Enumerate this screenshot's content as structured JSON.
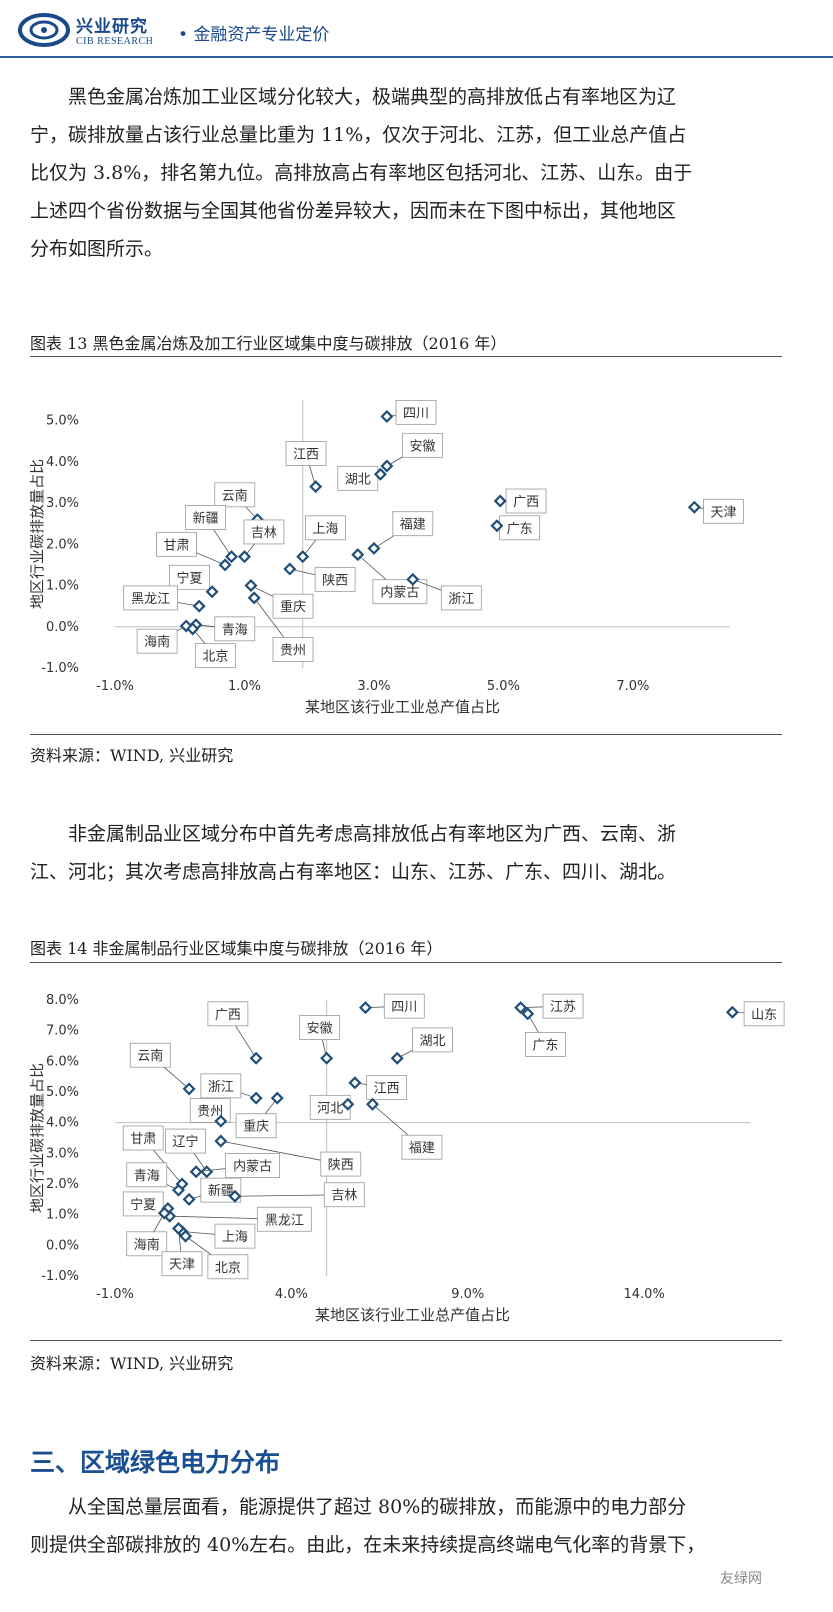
{
  "header": {
    "logo_cn": "兴业研究",
    "logo_en": "CIB RESEARCH",
    "tagline": "金融资产专业定价"
  },
  "para1": [
    "黑色金属冶炼加工业区域分化较大，极端典型的高排放低占有率地区为辽",
    "宁，碳排放量占该行业总量比重为 11%，仅次于河北、江苏，但工业总产值占",
    "比仅为 3.8%，排名第九位。高排放高占有率地区包括河北、江苏、山东。由于",
    "上述四个省份数据与全国其他省份差异较大，因而未在下图中标出，其他地区",
    "分布如图所示。"
  ],
  "chart13_caption": "图表 13  黑色金属冶炼及加工行业区域集中度与碳排放（2016 年）",
  "source1": "资料来源：WIND, 兴业研究",
  "para2": [
    "非金属制品业区域分布中首先考虑高排放低占有率地区为广西、云南、浙",
    "江、河北；其次考虑高排放高占有率地区：山东、江苏、广东、四川、湖北。"
  ],
  "chart14_caption": "图表 14  非金属制品行业区域集中度与碳排放（2016 年）",
  "source2": "资料来源：WIND, 兴业研究",
  "section_title": "三、区域绿色电力分布",
  "para3": [
    "从全国总量层面看，能源提供了超过 80%的碳排放，而能源中的电力部分",
    "则提供全部碳排放的 40%左右。由此，在未来持续提高终端电气化率的背景下，"
  ],
  "watermark": "友绿网",
  "colors": {
    "brand": "#1a4a8a",
    "point": "#1f4e79",
    "section": "#1b4f93"
  },
  "chart_data": [
    {
      "type": "scatter",
      "xlabel": "某地区该行业工业总产值占比",
      "ylabel": "地区行业碳排放量占比",
      "xlim": [
        -1.0,
        8.5
      ],
      "ylim": [
        -1.0,
        5.5
      ],
      "x_ticks": [
        "-1.0%",
        "1.0%",
        "3.0%",
        "5.0%",
        "7.0%"
      ],
      "y_ticks": [
        "-1.0%",
        "0.0%",
        "1.0%",
        "2.0%",
        "3.0%",
        "4.0%",
        "5.0%"
      ],
      "x_tick_values": [
        -1,
        1,
        3,
        5,
        7
      ],
      "y_tick_values": [
        -1,
        0,
        1,
        2,
        3,
        4,
        5
      ],
      "ref_x": 1.9,
      "ref_y": 0.0,
      "points": [
        {
          "name": "四川",
          "x": 3.2,
          "y": 5.1,
          "lx": 3.65,
          "ly": 5.2
        },
        {
          "name": "江西",
          "x": 2.1,
          "y": 3.4,
          "lx": 1.95,
          "ly": 4.2
        },
        {
          "name": "安徽",
          "x": 3.2,
          "y": 3.9,
          "lx": 3.75,
          "ly": 4.4
        },
        {
          "name": "湖北",
          "x": 3.1,
          "y": 3.7,
          "lx": 2.75,
          "ly": 3.6
        },
        {
          "name": "云南",
          "x": 1.2,
          "y": 2.6,
          "lx": 0.85,
          "ly": 3.2
        },
        {
          "name": "新疆",
          "x": 0.8,
          "y": 1.7,
          "lx": 0.4,
          "ly": 2.65
        },
        {
          "name": "吉林",
          "x": 1.0,
          "y": 1.7,
          "lx": 1.3,
          "ly": 2.3
        },
        {
          "name": "上海",
          "x": 1.9,
          "y": 1.7,
          "lx": 2.25,
          "ly": 2.4
        },
        {
          "name": "福建",
          "x": 3.0,
          "y": 1.9,
          "lx": 3.6,
          "ly": 2.5
        },
        {
          "name": "广西",
          "x": 4.95,
          "y": 3.05,
          "lx": 5.35,
          "ly": 3.05
        },
        {
          "name": "广东",
          "x": 4.9,
          "y": 2.45,
          "lx": 5.25,
          "ly": 2.4
        },
        {
          "name": "天津",
          "x": 7.95,
          "y": 2.9,
          "lx": 8.4,
          "ly": 2.8
        },
        {
          "name": "甘肃",
          "x": 0.7,
          "y": 1.5,
          "lx": -0.05,
          "ly": 2.0
        },
        {
          "name": "宁夏",
          "x": 0.5,
          "y": 0.85,
          "lx": 0.15,
          "ly": 1.2
        },
        {
          "name": "黑龙江",
          "x": 0.3,
          "y": 0.5,
          "lx": -0.45,
          "ly": 0.7
        },
        {
          "name": "内蒙古",
          "x": 2.75,
          "y": 1.75,
          "lx": 3.4,
          "ly": 0.85
        },
        {
          "name": "陕西",
          "x": 1.7,
          "y": 1.4,
          "lx": 2.4,
          "ly": 1.15
        },
        {
          "name": "浙江",
          "x": 3.6,
          "y": 1.15,
          "lx": 4.35,
          "ly": 0.7
        },
        {
          "name": "重庆",
          "x": 1.1,
          "y": 1.0,
          "lx": 1.75,
          "ly": 0.5
        },
        {
          "name": "贵州",
          "x": 1.15,
          "y": 0.7,
          "lx": 1.75,
          "ly": -0.55
        },
        {
          "name": "青海",
          "x": 0.25,
          "y": 0.05,
          "lx": 0.85,
          "ly": -0.05
        },
        {
          "name": "海南",
          "x": 0.1,
          "y": 0.02,
          "lx": -0.35,
          "ly": -0.35
        },
        {
          "name": "北京",
          "x": 0.2,
          "y": -0.05,
          "lx": 0.55,
          "ly": -0.7
        }
      ]
    },
    {
      "type": "scatter",
      "xlabel": "某地区该行业工业总产值占比",
      "ylabel": "地区行业碳排放量占比",
      "xlim": [
        -1.0,
        17.0
      ],
      "ylim": [
        -1.0,
        8.0
      ],
      "x_ticks": [
        "-1.0%",
        "4.0%",
        "9.0%",
        "14.0%"
      ],
      "y_ticks": [
        "-1.0%",
        "0.0%",
        "1.0%",
        "2.0%",
        "3.0%",
        "4.0%",
        "5.0%",
        "6.0%",
        "7.0%",
        "8.0%"
      ],
      "x_tick_values": [
        -1,
        4,
        9,
        14
      ],
      "y_tick_values": [
        -1,
        0,
        1,
        2,
        3,
        4,
        5,
        6,
        7,
        8
      ],
      "ref_x": 5.0,
      "ref_y": 4.0,
      "points": [
        {
          "name": "四川",
          "x": 6.1,
          "y": 7.75,
          "lx": 7.2,
          "ly": 7.8
        },
        {
          "name": "江苏",
          "x": 10.5,
          "y": 7.75,
          "lx": 11.7,
          "ly": 7.8
        },
        {
          "name": "广东",
          "x": 10.7,
          "y": 7.55,
          "lx": 11.2,
          "ly": 6.55
        },
        {
          "name": "山东",
          "x": 16.5,
          "y": 7.6,
          "lx": 17.4,
          "ly": 7.55
        },
        {
          "name": "广西",
          "x": 3.0,
          "y": 6.1,
          "lx": 2.2,
          "ly": 7.55
        },
        {
          "name": "安徽",
          "x": 5.0,
          "y": 6.1,
          "lx": 4.8,
          "ly": 7.1
        },
        {
          "name": "湖北",
          "x": 7.0,
          "y": 6.1,
          "lx": 8.0,
          "ly": 6.7
        },
        {
          "name": "云南",
          "x": 1.1,
          "y": 5.1,
          "lx": 0.0,
          "ly": 6.2
        },
        {
          "name": "浙江",
          "x": 3.0,
          "y": 4.8,
          "lx": 2.0,
          "ly": 5.2
        },
        {
          "name": "贵州",
          "x": 2.0,
          "y": 4.05,
          "lx": 1.7,
          "ly": 4.4
        },
        {
          "name": "重庆",
          "x": 3.6,
          "y": 4.8,
          "lx": 3.0,
          "ly": 3.9
        },
        {
          "name": "江西",
          "x": 5.8,
          "y": 5.3,
          "lx": 6.7,
          "ly": 5.15
        },
        {
          "name": "河北",
          "x": 5.6,
          "y": 4.6,
          "lx": 5.1,
          "ly": 4.5
        },
        {
          "name": "福建",
          "x": 6.3,
          "y": 4.6,
          "lx": 7.7,
          "ly": 3.2
        },
        {
          "name": "甘肃",
          "x": 0.9,
          "y": 2.0,
          "lx": -0.2,
          "ly": 3.5
        },
        {
          "name": "辽宁",
          "x": 1.6,
          "y": 2.4,
          "lx": 1.0,
          "ly": 3.4
        },
        {
          "name": "陕西",
          "x": 2.0,
          "y": 3.4,
          "lx": 5.4,
          "ly": 2.65
        },
        {
          "name": "内蒙古",
          "x": 1.3,
          "y": 2.4,
          "lx": 2.9,
          "ly": 2.6
        },
        {
          "name": "青海",
          "x": 0.8,
          "y": 1.8,
          "lx": -0.1,
          "ly": 2.3
        },
        {
          "name": "新疆",
          "x": 1.1,
          "y": 1.5,
          "lx": 2.0,
          "ly": 1.8
        },
        {
          "name": "吉林",
          "x": 2.4,
          "y": 1.6,
          "lx": 5.5,
          "ly": 1.65
        },
        {
          "name": "宁夏",
          "x": 0.5,
          "y": 1.2,
          "lx": -0.2,
          "ly": 1.35
        },
        {
          "name": "黑龙江",
          "x": 0.55,
          "y": 0.95,
          "lx": 3.8,
          "ly": 0.85
        },
        {
          "name": "海南",
          "x": 0.4,
          "y": 1.05,
          "lx": -0.1,
          "ly": 0.05
        },
        {
          "name": "上海",
          "x": 0.9,
          "y": 0.45,
          "lx": 2.4,
          "ly": 0.3
        },
        {
          "name": "天津",
          "x": 0.8,
          "y": 0.55,
          "lx": 0.9,
          "ly": -0.6
        },
        {
          "name": "北京",
          "x": 1.0,
          "y": 0.3,
          "lx": 2.2,
          "ly": -0.7
        }
      ]
    }
  ]
}
